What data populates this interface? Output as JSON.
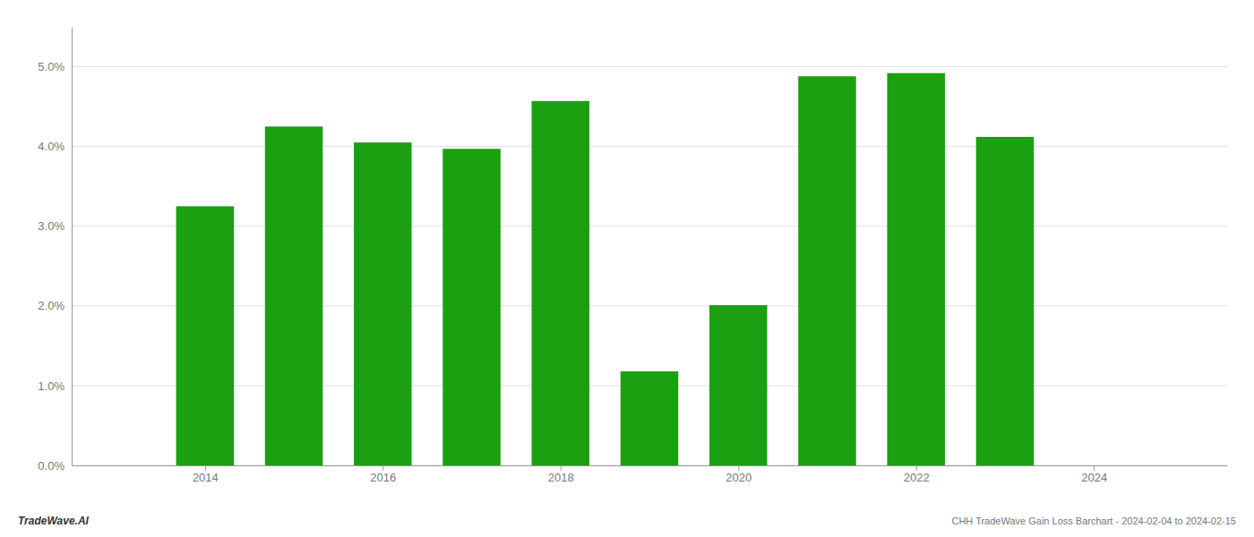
{
  "chart_data": {
    "type": "bar",
    "title": "CHH TradeWave Gain Loss Barchart - 2024-02-04 to 2024-02-15",
    "annotations": [
      "TradeWave.AI"
    ],
    "x": [
      2014,
      2015,
      2016,
      2017,
      2018,
      2019,
      2020,
      2021,
      2022,
      2023
    ],
    "values": [
      0.0325,
      0.0425,
      0.0405,
      0.0397,
      0.0457,
      0.0118,
      0.0201,
      0.0488,
      0.0492,
      0.0412
    ],
    "color": "#1aa010",
    "xlim": [
      2012.5,
      2025.5
    ],
    "xticks": [
      2014,
      2016,
      2018,
      2020,
      2022,
      2024
    ],
    "ylim": [
      0.0,
      0.055
    ],
    "yticks": [
      {
        "value": 0.0,
        "label": "0.0%"
      },
      {
        "value": 0.01,
        "label": "1.0%"
      },
      {
        "value": 0.02,
        "label": "2.0%"
      },
      {
        "value": 0.03,
        "label": "3.0%"
      },
      {
        "value": 0.04,
        "label": "4.0%"
      },
      {
        "value": 0.05,
        "label": "5.0%"
      }
    ],
    "grid": true
  }
}
